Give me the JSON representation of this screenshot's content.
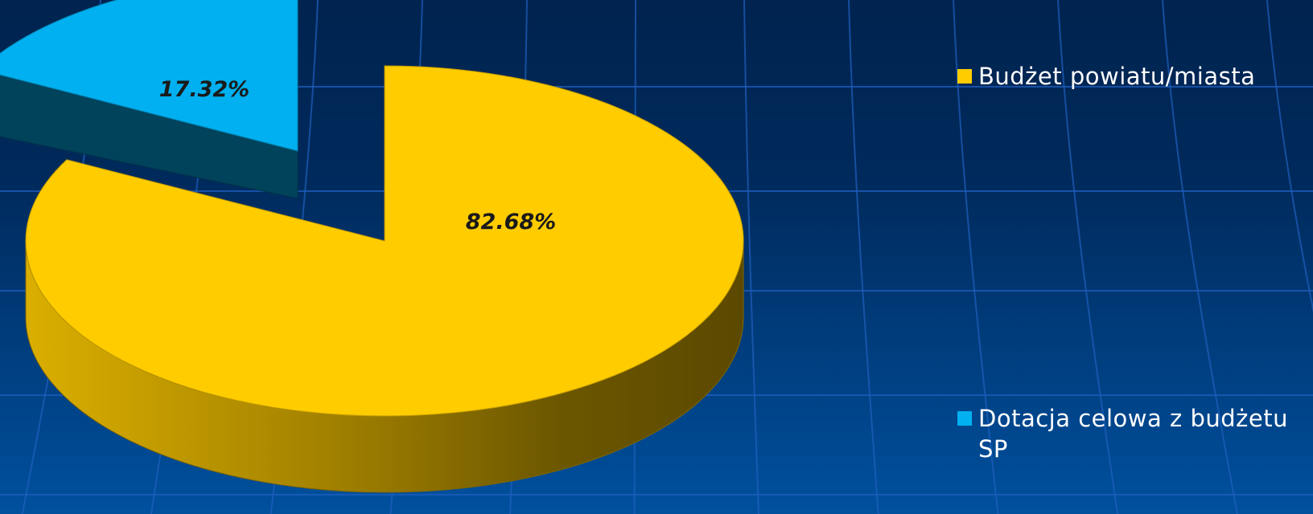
{
  "chart_data": {
    "type": "pie",
    "three_d": true,
    "exploded": true,
    "legend_position": "right",
    "series": [
      {
        "name": "Budżet powiatu/miasta",
        "value": 82.68,
        "label": "82.68%",
        "color": "#FFCC00"
      },
      {
        "name": "Dotacja celowa z budżetu SP",
        "value": 17.32,
        "label": "17.32%",
        "color": "#00B0F0"
      }
    ]
  },
  "theme": {
    "background_top": "#00234F",
    "background_bottom": "#00509E",
    "grid_color": "#1F5FBF",
    "label_color": "#1A1A1A",
    "legend_text_color": "#FFFFFF"
  }
}
